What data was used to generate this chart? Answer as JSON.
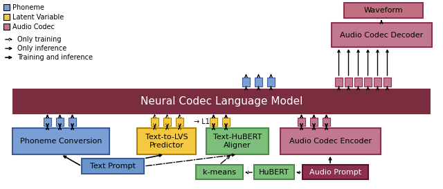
{
  "colors": {
    "nclm_bg": "#7B2D40",
    "phoneme": "#7A9FD4",
    "latent": "#F5C842",
    "audio_codec": "#C27890",
    "audio_codec_edge": "#8B3050",
    "green": "#7BBF7B",
    "green_edge": "#4A8A4A",
    "blue_prompt": "#6B96CC",
    "blue_prompt_edge": "#3A5A9A",
    "audio_prompt_bg": "#8B3050",
    "audio_prompt_edge": "#5A1030",
    "waveform_bg": "#C07080",
    "background": "#FFFFFF",
    "phoneme_edge": "#3A5A9A",
    "latent_edge": "#B08000"
  },
  "legend": {
    "phoneme": "Phoneme",
    "latent": "Latent Variable",
    "audio": "Audio Codec",
    "only_train": "Only training",
    "only_infer": "Only inference",
    "train_infer": "Training and inference"
  }
}
